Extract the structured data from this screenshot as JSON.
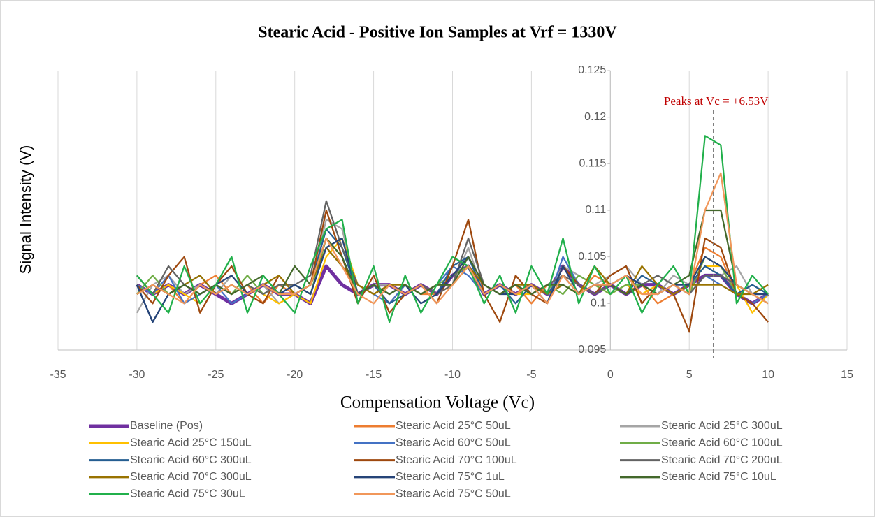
{
  "chart_data": {
    "type": "line",
    "title": "Stearic Acid - Positive Ion Samples at Vrf = 1330V",
    "x_label": "Compensation Voltage (Vc)",
    "y_label": "Signal Intensity (V)",
    "xlim": [
      -35,
      15
    ],
    "xticks": [
      -35,
      -30,
      -25,
      -20,
      -15,
      -10,
      -5,
      0,
      5,
      10,
      15
    ],
    "ylim": [
      0.095,
      0.125
    ],
    "yticks": [
      0.095,
      0.1,
      0.105,
      0.11,
      0.115,
      0.12,
      0.125
    ],
    "grid": true,
    "legend": "bottom",
    "annotation": {
      "text": "Peaks at Vc = +6.53V",
      "x": 6.53,
      "color": "#c00000"
    },
    "x": [
      -30,
      -29,
      -28,
      -27,
      -26,
      -25,
      -24,
      -23,
      -22,
      -21,
      -20,
      -19,
      -18,
      -17,
      -16,
      -15,
      -14,
      -13,
      -12,
      -11,
      -10,
      -9,
      -8,
      -7,
      -6,
      -5,
      -4,
      -3,
      -2,
      -1,
      0,
      1,
      2,
      3,
      4,
      5,
      6,
      7,
      8,
      9,
      10
    ],
    "series": [
      {
        "name": "Baseline (Pos)",
        "color": "#7030a0",
        "width": 5,
        "values": [
          0.102,
          0.101,
          0.102,
          0.101,
          0.102,
          0.101,
          0.1,
          0.101,
          0.102,
          0.101,
          0.101,
          0.1,
          0.104,
          0.102,
          0.101,
          0.102,
          0.102,
          0.101,
          0.102,
          0.101,
          0.103,
          0.104,
          0.101,
          0.102,
          0.101,
          0.102,
          0.101,
          0.104,
          0.102,
          0.101,
          0.102,
          0.101,
          0.102,
          0.102,
          0.101,
          0.102,
          0.103,
          0.103,
          0.101,
          0.1,
          0.101
        ]
      },
      {
        "name": "Stearic Acid 25°C 50uL",
        "color": "#ed7d31",
        "values": [
          0.103,
          0.101,
          0.102,
          0.1,
          0.102,
          0.103,
          0.101,
          0.102,
          0.1,
          0.102,
          0.101,
          0.102,
          0.107,
          0.104,
          0.101,
          0.102,
          0.1,
          0.102,
          0.101,
          0.101,
          0.103,
          0.105,
          0.102,
          0.101,
          0.102,
          0.1,
          0.102,
          0.103,
          0.101,
          0.103,
          0.102,
          0.101,
          0.102,
          0.1,
          0.101,
          0.102,
          0.106,
          0.105,
          0.101,
          0.1,
          0.101
        ]
      },
      {
        "name": "Stearic Acid 25°C 300uL",
        "color": "#a5a5a5",
        "values": [
          0.099,
          0.102,
          0.103,
          0.101,
          0.102,
          0.101,
          0.103,
          0.101,
          0.102,
          0.1,
          0.101,
          0.102,
          0.109,
          0.108,
          0.101,
          0.102,
          0.102,
          0.101,
          0.102,
          0.101,
          0.102,
          0.106,
          0.101,
          0.102,
          0.101,
          0.102,
          0.101,
          0.104,
          0.103,
          0.102,
          0.103,
          0.104,
          0.102,
          0.101,
          0.103,
          0.102,
          0.104,
          0.103,
          0.104,
          0.101,
          0.102
        ]
      },
      {
        "name": "Stearic Acid 25°C 150uL",
        "color": "#ffc000",
        "values": [
          0.102,
          0.101,
          0.102,
          0.101,
          0.1,
          0.102,
          0.101,
          0.102,
          0.101,
          0.1,
          0.101,
          0.1,
          0.105,
          0.107,
          0.102,
          0.101,
          0.102,
          0.101,
          0.102,
          0.101,
          0.102,
          0.104,
          0.101,
          0.102,
          0.101,
          0.101,
          0.102,
          0.102,
          0.101,
          0.102,
          0.101,
          0.102,
          0.101,
          0.102,
          0.101,
          0.102,
          0.104,
          0.104,
          0.102,
          0.099,
          0.101
        ]
      },
      {
        "name": "Stearic Acid 60°C 50uL",
        "color": "#4472c4",
        "values": [
          0.102,
          0.101,
          0.103,
          0.1,
          0.101,
          0.102,
          0.1,
          0.101,
          0.102,
          0.101,
          0.102,
          0.101,
          0.106,
          0.104,
          0.102,
          0.101,
          0.1,
          0.102,
          0.101,
          0.102,
          0.104,
          0.103,
          0.101,
          0.102,
          0.101,
          0.102,
          0.1,
          0.105,
          0.102,
          0.101,
          0.102,
          0.101,
          0.102,
          0.101,
          0.102,
          0.101,
          0.103,
          0.102,
          0.101,
          0.1,
          0.101
        ]
      },
      {
        "name": "Stearic Acid 60°C 100uL",
        "color": "#70ad47",
        "values": [
          0.101,
          0.103,
          0.101,
          0.102,
          0.101,
          0.102,
          0.101,
          0.103,
          0.101,
          0.102,
          0.102,
          0.101,
          0.107,
          0.105,
          0.101,
          0.102,
          0.101,
          0.102,
          0.101,
          0.102,
          0.103,
          0.104,
          0.102,
          0.101,
          0.102,
          0.101,
          0.102,
          0.101,
          0.103,
          0.102,
          0.101,
          0.102,
          0.102,
          0.101,
          0.102,
          0.101,
          0.105,
          0.104,
          0.101,
          0.102,
          0.101
        ]
      },
      {
        "name": "Stearic Acid 60°C 300uL",
        "color": "#255e91",
        "values": [
          0.102,
          0.098,
          0.101,
          0.102,
          0.103,
          0.101,
          0.102,
          0.101,
          0.102,
          0.101,
          0.101,
          0.102,
          0.108,
          0.106,
          0.101,
          0.102,
          0.1,
          0.101,
          0.102,
          0.101,
          0.104,
          0.105,
          0.101,
          0.102,
          0.1,
          0.102,
          0.101,
          0.103,
          0.101,
          0.102,
          0.102,
          0.101,
          0.103,
          0.102,
          0.101,
          0.102,
          0.104,
          0.103,
          0.101,
          0.102,
          0.101
        ]
      },
      {
        "name": "Stearic Acid 70°C 100uL",
        "color": "#9e480e",
        "values": [
          0.102,
          0.1,
          0.103,
          0.105,
          0.099,
          0.102,
          0.104,
          0.101,
          0.1,
          0.103,
          0.101,
          0.102,
          0.11,
          0.105,
          0.1,
          0.103,
          0.099,
          0.101,
          0.102,
          0.1,
          0.104,
          0.109,
          0.101,
          0.098,
          0.103,
          0.101,
          0.1,
          0.104,
          0.102,
          0.101,
          0.103,
          0.104,
          0.1,
          0.102,
          0.101,
          0.097,
          0.107,
          0.106,
          0.101,
          0.1,
          0.098
        ]
      },
      {
        "name": "Stearic Acid 70°C 200uL",
        "color": "#636363",
        "values": [
          0.103,
          0.101,
          0.104,
          0.102,
          0.101,
          0.102,
          0.101,
          0.102,
          0.101,
          0.102,
          0.102,
          0.103,
          0.111,
          0.106,
          0.102,
          0.101,
          0.102,
          0.101,
          0.102,
          0.101,
          0.102,
          0.107,
          0.102,
          0.101,
          0.102,
          0.101,
          0.102,
          0.103,
          0.102,
          0.101,
          0.102,
          0.101,
          0.102,
          0.103,
          0.102,
          0.101,
          0.103,
          0.103,
          0.102,
          0.101,
          0.101
        ]
      },
      {
        "name": "Stearic Acid 70°C 300uL",
        "color": "#997300",
        "values": [
          0.101,
          0.102,
          0.101,
          0.102,
          0.103,
          0.101,
          0.102,
          0.101,
          0.102,
          0.103,
          0.101,
          0.102,
          0.106,
          0.104,
          0.102,
          0.101,
          0.102,
          0.102,
          0.101,
          0.102,
          0.102,
          0.104,
          0.102,
          0.101,
          0.102,
          0.102,
          0.101,
          0.102,
          0.101,
          0.104,
          0.102,
          0.101,
          0.104,
          0.102,
          0.101,
          0.102,
          0.102,
          0.102,
          0.101,
          0.101,
          0.102
        ]
      },
      {
        "name": "Stearic Acid 75°C 1uL",
        "color": "#264478",
        "values": [
          0.102,
          0.098,
          0.101,
          0.102,
          0.101,
          0.102,
          0.103,
          0.101,
          0.102,
          0.101,
          0.102,
          0.101,
          0.106,
          0.107,
          0.101,
          0.102,
          0.101,
          0.102,
          0.1,
          0.101,
          0.103,
          0.105,
          0.102,
          0.101,
          0.101,
          0.102,
          0.1,
          0.104,
          0.101,
          0.102,
          0.102,
          0.103,
          0.102,
          0.101,
          0.102,
          0.102,
          0.105,
          0.104,
          0.102,
          0.101,
          0.101
        ]
      },
      {
        "name": "Stearic Acid 75°C 10uL",
        "color": "#43682b",
        "values": [
          0.101,
          0.102,
          0.101,
          0.102,
          0.101,
          0.102,
          0.101,
          0.102,
          0.103,
          0.101,
          0.104,
          0.102,
          0.107,
          0.105,
          0.101,
          0.102,
          0.101,
          0.102,
          0.101,
          0.102,
          0.102,
          0.105,
          0.102,
          0.101,
          0.102,
          0.101,
          0.102,
          0.102,
          0.101,
          0.102,
          0.102,
          0.101,
          0.102,
          0.101,
          0.102,
          0.103,
          0.11,
          0.11,
          0.102,
          0.101,
          0.1
        ]
      },
      {
        "name": "Stearic Acid 75°C 30uL",
        "color": "#21b04b",
        "values": [
          0.103,
          0.101,
          0.099,
          0.104,
          0.1,
          0.102,
          0.105,
          0.099,
          0.103,
          0.101,
          0.099,
          0.104,
          0.108,
          0.109,
          0.1,
          0.104,
          0.098,
          0.103,
          0.099,
          0.102,
          0.105,
          0.104,
          0.1,
          0.103,
          0.099,
          0.104,
          0.101,
          0.107,
          0.1,
          0.104,
          0.101,
          0.103,
          0.099,
          0.102,
          0.104,
          0.101,
          0.118,
          0.117,
          0.1,
          0.103,
          0.101
        ]
      },
      {
        "name": "Stearic Acid 75°C 50uL",
        "color": "#f1975a",
        "values": [
          0.101,
          0.102,
          0.101,
          0.1,
          0.102,
          0.101,
          0.102,
          0.101,
          0.102,
          0.101,
          0.101,
          0.102,
          0.107,
          0.104,
          0.101,
          0.1,
          0.102,
          0.101,
          0.102,
          0.1,
          0.102,
          0.104,
          0.101,
          0.102,
          0.101,
          0.102,
          0.1,
          0.103,
          0.101,
          0.102,
          0.102,
          0.103,
          0.101,
          0.101,
          0.102,
          0.101,
          0.11,
          0.114,
          0.102,
          0.101,
          0.1
        ]
      }
    ]
  }
}
